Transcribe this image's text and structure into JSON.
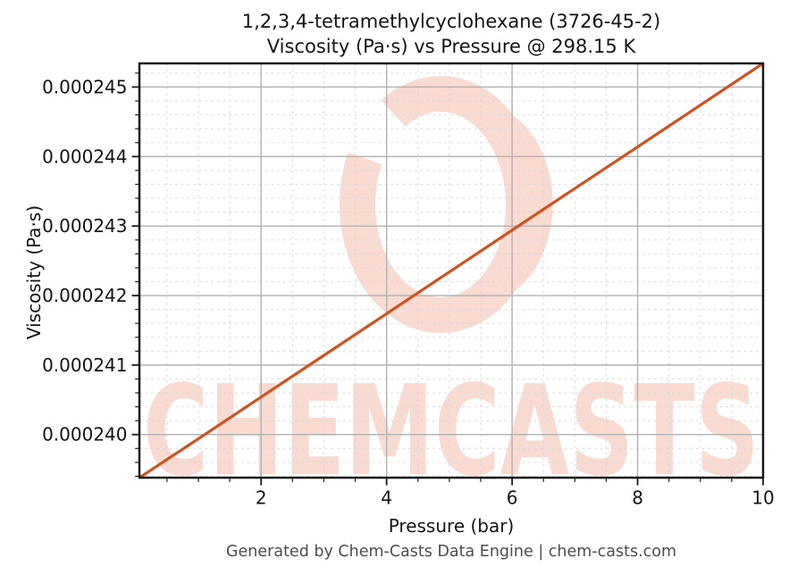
{
  "figure": {
    "footer": "Generated by Chem-Casts Data Engine | chem-casts.com"
  },
  "watermark": {
    "text": "CHEMCASTS",
    "logo": "brush-ring-logo",
    "color": "#f9dbd2"
  },
  "chart_data": {
    "type": "line",
    "title": "1,2,3,4-tetramethylcyclohexane (3726-45-2)",
    "subtitle": "Viscosity (Pa·s) vs Pressure @ 298.15 K",
    "xlabel": "Pressure (bar)",
    "ylabel": "Viscosity (Pa·s)",
    "x_range": [
      0.06,
      10
    ],
    "y_range": [
      0.00023938,
      0.00024534
    ],
    "x_major_ticks": [
      2,
      4,
      6,
      8,
      10
    ],
    "x_minor_step": 0.5,
    "y_major_ticks": [
      {
        "value": 0.00024,
        "label": "0.000240"
      },
      {
        "value": 0.000241,
        "label": "0.000241"
      },
      {
        "value": 0.000242,
        "label": "0.000242"
      },
      {
        "value": 0.000243,
        "label": "0.000243"
      },
      {
        "value": 0.000244,
        "label": "0.000244"
      },
      {
        "value": 0.000245,
        "label": "0.000245"
      }
    ],
    "y_major_step": 1e-06,
    "y_minor_step": 2e-07,
    "grid": {
      "major_color": "#b0b0b0",
      "minor_color": "#d9d9d9",
      "minor_dashed": true,
      "legend": "none"
    },
    "axis": {
      "spine_color": "#1a1a1a",
      "tick_color": "#1a1a1a",
      "tick_label_color": "#141414"
    },
    "series": [
      {
        "name": "viscosity-vs-pressure",
        "color": "#d2521e",
        "linewidth": 3.2,
        "x": [
          0.06,
          1,
          2,
          3,
          4,
          5,
          6,
          7,
          8,
          9,
          10
        ],
        "y": [
          0.00023938,
          0.00023994,
          0.00024054,
          0.00024114,
          0.00024174,
          0.00024234,
          0.00024294,
          0.00024354,
          0.00024414,
          0.00024474,
          0.00024534
        ]
      }
    ]
  }
}
